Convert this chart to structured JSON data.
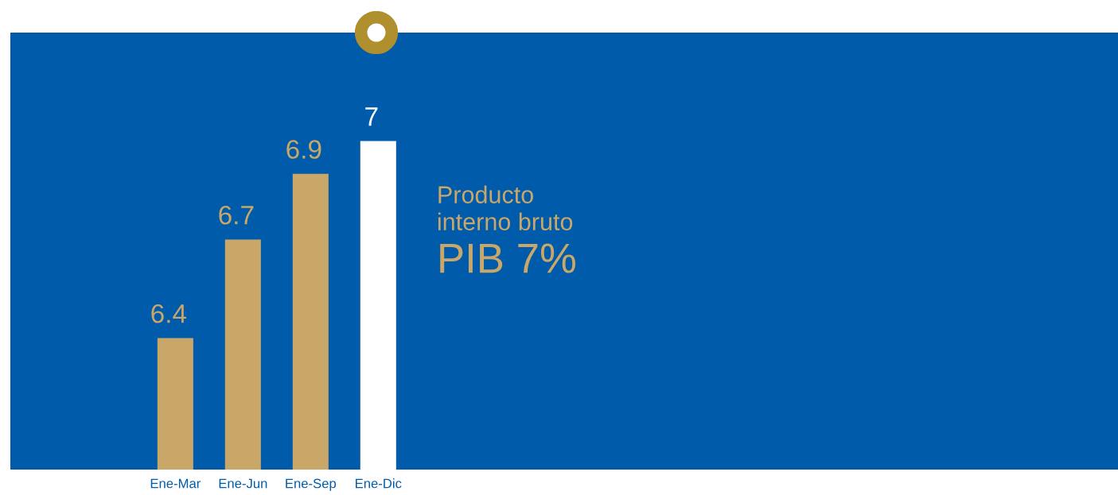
{
  "chart_data": {
    "type": "bar",
    "categories": [
      "Ene-Mar",
      "Ene-Jun",
      "Ene-Sep",
      "Ene-Dic"
    ],
    "values": [
      6.4,
      6.7,
      6.9,
      7
    ],
    "colors": [
      "#c9a769",
      "#c9a769",
      "#c9a769",
      "#ffffff"
    ],
    "ylim": [
      6.0,
      7.33
    ],
    "data_labels": true,
    "tick_labels": "x",
    "annotations": [
      "Producto\ninterno bruto",
      "PIB 7%"
    ]
  }
}
